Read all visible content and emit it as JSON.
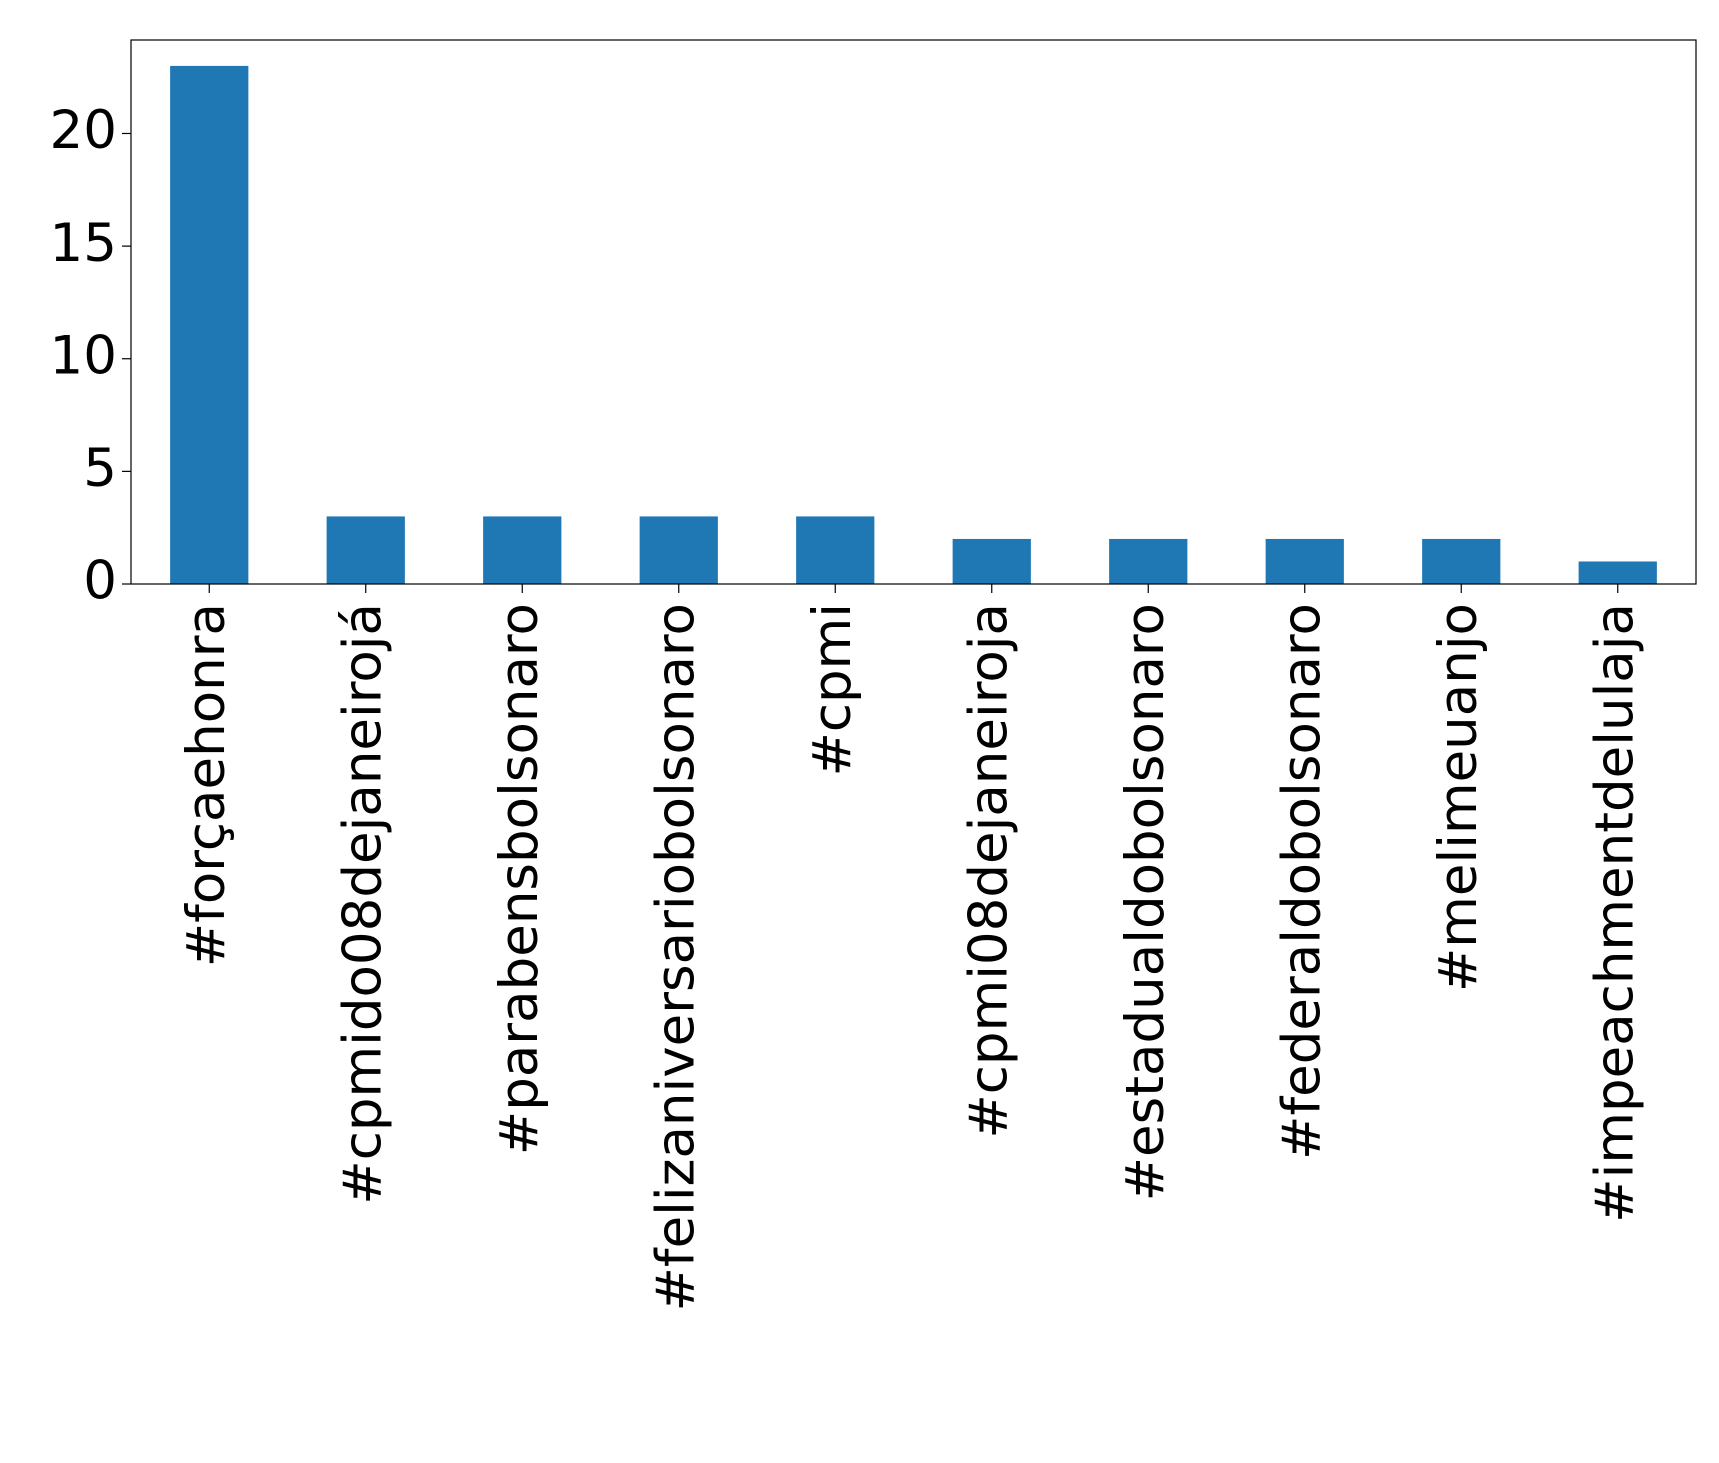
{
  "chart_data": {
    "type": "bar",
    "categories": [
      "#forçaehonra",
      "#cpmido08dejaneirojá",
      "#parabensbolsonaro",
      "#felizaniversariobolsonaro",
      "#cpmi",
      "#cpmi08dejaneiroja",
      "#estadualdobolsonaro",
      "#federaldobolsonaro",
      "#melimeuanjo",
      "#impeachmentdelulaja"
    ],
    "values": [
      23,
      3,
      3,
      3,
      3,
      2,
      2,
      2,
      2,
      1
    ],
    "color": "#1f77b4",
    "ylim": [
      0,
      24.15
    ],
    "yticks": [
      0,
      5,
      10,
      15,
      20
    ],
    "grid": false
  }
}
